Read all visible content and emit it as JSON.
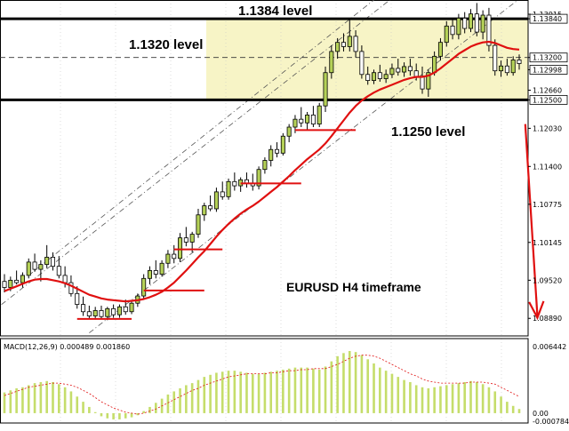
{
  "chart_data": {
    "type": "candlestick",
    "annotations": {
      "level_top": "1.1384 level",
      "level_mid": "1.1320 level",
      "level_bottom": "1.1250 level",
      "timeframe": "EURUSD H4 timeframe"
    },
    "price_axis": {
      "ticks": [
        "1.13915",
        "1.13840",
        "1.13200",
        "1.12998",
        "1.12660",
        "1.12500",
        "1.12030",
        "1.11400",
        "1.10775",
        "1.10145",
        "1.09520",
        "1.08890"
      ],
      "highlighted": [
        "1.13840",
        "1.13200",
        "1.12998",
        "1.12500"
      ],
      "ylim": [
        1.086,
        1.1415
      ]
    },
    "levels": [
      {
        "value": 1.1384,
        "style": "solid-thick"
      },
      {
        "value": 1.132,
        "style": "dashed"
      },
      {
        "value": 1.125,
        "style": "solid-thick"
      }
    ],
    "zone": {
      "from": 1.125,
      "to": 1.1384,
      "color": "#f7f4c6"
    },
    "candles_ohlc": [
      [
        1.095,
        1.0962,
        1.0932,
        1.094
      ],
      [
        1.094,
        1.0958,
        1.0934,
        1.0952
      ],
      [
        1.0952,
        1.0968,
        1.0945,
        1.0948
      ],
      [
        1.0948,
        1.0965,
        1.094,
        1.096
      ],
      [
        1.096,
        1.0988,
        1.0955,
        1.0982
      ],
      [
        1.0982,
        1.0996,
        1.0966,
        1.097
      ],
      [
        1.097,
        1.0985,
        1.095,
        1.0978
      ],
      [
        1.0978,
        1.101,
        1.0972,
        1.099
      ],
      [
        1.099,
        1.0998,
        1.0968,
        1.0975
      ],
      [
        1.0975,
        1.0992,
        1.0955,
        1.096
      ],
      [
        1.096,
        1.0975,
        1.094,
        1.0948
      ],
      [
        1.0948,
        1.096,
        1.0925,
        1.093
      ],
      [
        1.093,
        1.0942,
        1.0905,
        1.0912
      ],
      [
        1.0912,
        1.0925,
        1.0893,
        1.09
      ],
      [
        1.09,
        1.091,
        1.0888,
        1.0893
      ],
      [
        1.0893,
        1.0908,
        1.0887,
        1.0902
      ],
      [
        1.0902,
        1.091,
        1.0888,
        1.0892
      ],
      [
        1.0892,
        1.0908,
        1.0886,
        1.0905
      ],
      [
        1.0905,
        1.0912,
        1.089,
        1.0895
      ],
      [
        1.0895,
        1.0912,
        1.089,
        1.0908
      ],
      [
        1.0908,
        1.092,
        1.0895,
        1.09
      ],
      [
        1.09,
        1.0918,
        1.0896,
        1.0914
      ],
      [
        1.0914,
        1.093,
        1.0908,
        1.0926
      ],
      [
        1.0926,
        1.0962,
        1.092,
        1.0955
      ],
      [
        1.0955,
        1.0975,
        1.0945,
        1.0968
      ],
      [
        1.0968,
        1.0985,
        1.0955,
        1.0962
      ],
      [
        1.0962,
        1.0985,
        1.0958,
        1.098
      ],
      [
        1.098,
        1.1002,
        1.0972,
        1.0995
      ],
      [
        1.0995,
        1.101,
        1.098,
        1.0988
      ],
      [
        1.0988,
        1.103,
        1.0982,
        1.1022
      ],
      [
        1.1022,
        1.104,
        1.1008,
        1.1015
      ],
      [
        1.1015,
        1.1032,
        1.0998,
        1.1028
      ],
      [
        1.1028,
        1.107,
        1.1022,
        1.106
      ],
      [
        1.106,
        1.108,
        1.105,
        1.1075
      ],
      [
        1.1075,
        1.1092,
        1.1066,
        1.107
      ],
      [
        1.107,
        1.1105,
        1.1065,
        1.1098
      ],
      [
        1.1098,
        1.1115,
        1.1085,
        1.109
      ],
      [
        1.109,
        1.112,
        1.1085,
        1.1115
      ],
      [
        1.1115,
        1.113,
        1.11,
        1.1108
      ],
      [
        1.1108,
        1.1122,
        1.1098,
        1.1118
      ],
      [
        1.1118,
        1.113,
        1.1105,
        1.1112
      ],
      [
        1.1112,
        1.1128,
        1.11,
        1.1108
      ],
      [
        1.1108,
        1.114,
        1.1102,
        1.1135
      ],
      [
        1.1135,
        1.1155,
        1.1128,
        1.115
      ],
      [
        1.115,
        1.1175,
        1.114,
        1.1168
      ],
      [
        1.1168,
        1.118,
        1.1155,
        1.1162
      ],
      [
        1.1162,
        1.1195,
        1.1158,
        1.119
      ],
      [
        1.119,
        1.121,
        1.118,
        1.1205
      ],
      [
        1.1205,
        1.1225,
        1.1195,
        1.1218
      ],
      [
        1.1218,
        1.1238,
        1.1205,
        1.1212
      ],
      [
        1.1212,
        1.123,
        1.12,
        1.1225
      ],
      [
        1.1225,
        1.124,
        1.1205,
        1.121
      ],
      [
        1.121,
        1.1245,
        1.1205,
        1.124
      ],
      [
        1.124,
        1.1305,
        1.123,
        1.1295
      ],
      [
        1.1295,
        1.134,
        1.1285,
        1.133
      ],
      [
        1.133,
        1.1352,
        1.1318,
        1.1345
      ],
      [
        1.1345,
        1.136,
        1.133,
        1.1338
      ],
      [
        1.1338,
        1.1385,
        1.133,
        1.1355
      ],
      [
        1.1355,
        1.1365,
        1.132,
        1.133
      ],
      [
        1.133,
        1.134,
        1.1285,
        1.1292
      ],
      [
        1.1292,
        1.1305,
        1.1275,
        1.1282
      ],
      [
        1.1282,
        1.13,
        1.1276,
        1.1295
      ],
      [
        1.1295,
        1.1308,
        1.128,
        1.1285
      ],
      [
        1.1285,
        1.13,
        1.1278,
        1.1292
      ],
      [
        1.1292,
        1.131,
        1.1286,
        1.1302
      ],
      [
        1.1302,
        1.1318,
        1.129,
        1.1296
      ],
      [
        1.1296,
        1.1312,
        1.1288,
        1.1305
      ],
      [
        1.1305,
        1.1318,
        1.129,
        1.1298
      ],
      [
        1.1298,
        1.131,
        1.1282,
        1.1288
      ],
      [
        1.1288,
        1.1305,
        1.126,
        1.1268
      ],
      [
        1.1268,
        1.13,
        1.1255,
        1.1295
      ],
      [
        1.1295,
        1.133,
        1.129,
        1.1322
      ],
      [
        1.1322,
        1.1352,
        1.1315,
        1.1345
      ],
      [
        1.1345,
        1.138,
        1.1338,
        1.1372
      ],
      [
        1.1372,
        1.1385,
        1.135,
        1.1358
      ],
      [
        1.1358,
        1.1392,
        1.135,
        1.1385
      ],
      [
        1.1385,
        1.1395,
        1.136,
        1.1368
      ],
      [
        1.1368,
        1.14,
        1.1362,
        1.1392
      ],
      [
        1.1392,
        1.141,
        1.1355,
        1.1362
      ],
      [
        1.1362,
        1.1398,
        1.135,
        1.139
      ],
      [
        1.139,
        1.1402,
        1.133,
        1.134
      ],
      [
        1.134,
        1.135,
        1.129,
        1.1298
      ],
      [
        1.1298,
        1.1315,
        1.1288,
        1.1306
      ],
      [
        1.1306,
        1.1318,
        1.129,
        1.1295
      ],
      [
        1.1295,
        1.1322,
        1.129,
        1.1316
      ],
      [
        1.1316,
        1.1325,
        1.13,
        1.131
      ]
    ],
    "moving_average": [
      1.0934,
      1.0938,
      1.0942,
      1.0946,
      1.095,
      1.0953,
      1.0954,
      1.0954,
      1.0952,
      1.095,
      1.0947,
      1.0943,
      1.0938,
      1.0933,
      1.0928,
      1.0925,
      1.0922,
      1.092,
      1.0919,
      1.0918,
      1.0917,
      1.0918,
      1.0919,
      1.0921,
      1.0924,
      1.0928,
      1.0933,
      1.094,
      1.0948,
      1.0958,
      1.0968,
      1.0979,
      1.099,
      1.1,
      1.1012,
      1.1024,
      1.1035,
      1.1045,
      1.1054,
      1.1062,
      1.1069,
      1.1075,
      1.1082,
      1.109,
      1.1098,
      1.1106,
      1.1115,
      1.1124,
      1.1134,
      1.1143,
      1.1152,
      1.116,
      1.1168,
      1.1178,
      1.119,
      1.1203,
      1.1216,
      1.1229,
      1.124,
      1.1249,
      1.1256,
      1.1262,
      1.1267,
      1.1271,
      1.1275,
      1.1279,
      1.1283,
      1.1286,
      1.1288,
      1.1288,
      1.129,
      1.1295,
      1.1302,
      1.131,
      1.1318,
      1.1326,
      1.1332,
      1.1338,
      1.1342,
      1.1345,
      1.1346,
      1.1344,
      1.134,
      1.1336,
      1.1334,
      1.1333
    ],
    "support_lines": [
      {
        "value": 1.0888,
        "from": 12,
        "to": 21
      },
      {
        "value": 1.0935,
        "from": 23,
        "to": 33
      },
      {
        "value": 1.1003,
        "from": 28,
        "to": 36
      },
      {
        "value": 1.1112,
        "from": 39,
        "to": 49
      },
      {
        "value": 1.12,
        "from": 48,
        "to": 58
      }
    ],
    "channel_lines": [
      {
        "style": "dash-dot",
        "from": [
          4,
          1.096
        ],
        "to": [
          61,
          1.1415
        ]
      },
      {
        "style": "dash-dot",
        "from": [
          14,
          1.0865
        ],
        "to": [
          88,
          1.144
        ]
      },
      {
        "style": "dash-dot",
        "from": [
          -2,
          1.09
        ],
        "to": [
          70,
          1.1465
        ]
      }
    ],
    "forecast_arrow": {
      "from": [
        86,
        1.121
      ],
      "to": [
        88,
        1.089
      ],
      "color": "#e01010"
    },
    "macd": {
      "label": "MACD(12,26,9) 0.000489 0.001860",
      "ticks": [
        "0.006442",
        "0.00",
        "-0.000784"
      ],
      "ylim": [
        -0.00095,
        0.0072
      ],
      "histogram": [
        0.002,
        0.0022,
        0.0024,
        0.0025,
        0.0027,
        0.0029,
        0.003,
        0.0031,
        0.003,
        0.0028,
        0.0025,
        0.0021,
        0.0016,
        0.0011,
        0.0006,
        0.0001,
        -0.0003,
        -0.0005,
        -0.0006,
        -0.0006,
        -0.0005,
        -0.0004,
        -0.0002,
        0.0002,
        0.0006,
        0.001,
        0.0014,
        0.0018,
        0.0021,
        0.0024,
        0.0027,
        0.0029,
        0.0032,
        0.0035,
        0.0037,
        0.0039,
        0.004,
        0.0041,
        0.0041,
        0.004,
        0.0039,
        0.0038,
        0.0038,
        0.0039,
        0.004,
        0.0041,
        0.0042,
        0.0043,
        0.0044,
        0.0044,
        0.0044,
        0.0043,
        0.0042,
        0.0045,
        0.005,
        0.0055,
        0.0058,
        0.006,
        0.0059,
        0.0056,
        0.0052,
        0.0048,
        0.0044,
        0.0041,
        0.0038,
        0.0035,
        0.0032,
        0.003,
        0.0027,
        0.0025,
        0.0024,
        0.0025,
        0.0026,
        0.0027,
        0.0028,
        0.0029,
        0.003,
        0.0031,
        0.003,
        0.0028,
        0.0025,
        0.0021,
        0.0016,
        0.0011,
        0.0007,
        0.0004
      ],
      "signal": [
        0.0017,
        0.0019,
        0.0021,
        0.0023,
        0.0025,
        0.0026,
        0.0027,
        0.0028,
        0.0029,
        0.0029,
        0.0028,
        0.0027,
        0.0025,
        0.0022,
        0.0019,
        0.0015,
        0.0011,
        0.0008,
        0.0005,
        0.0003,
        0.0001,
        0.0,
        -0.0001,
        0.0,
        0.0002,
        0.0004,
        0.0007,
        0.001,
        0.0013,
        0.0016,
        0.0019,
        0.0022,
        0.0024,
        0.0027,
        0.0029,
        0.0031,
        0.0033,
        0.0035,
        0.0036,
        0.0037,
        0.0038,
        0.0038,
        0.0038,
        0.0038,
        0.0039,
        0.0039,
        0.004,
        0.0041,
        0.0041,
        0.0042,
        0.0042,
        0.0043,
        0.0043,
        0.0043,
        0.0045,
        0.0047,
        0.005,
        0.0053,
        0.0055,
        0.0056,
        0.0056,
        0.0055,
        0.0053,
        0.005,
        0.0047,
        0.0044,
        0.0041,
        0.0038,
        0.0036,
        0.0033,
        0.0031,
        0.003,
        0.0029,
        0.0029,
        0.0029,
        0.0029,
        0.0029,
        0.003,
        0.003,
        0.003,
        0.0029,
        0.0028,
        0.0025,
        0.0022,
        0.0019,
        0.0016
      ]
    },
    "colors": {
      "bull": "#b5d158",
      "bear": "#ffffff",
      "candle_outline": "#000000",
      "ma": "#e01010",
      "support": "#e01010",
      "zone": "#f7f4c6",
      "macd_hist": "#c5dd6a",
      "macd_signal": "#e01010"
    }
  }
}
